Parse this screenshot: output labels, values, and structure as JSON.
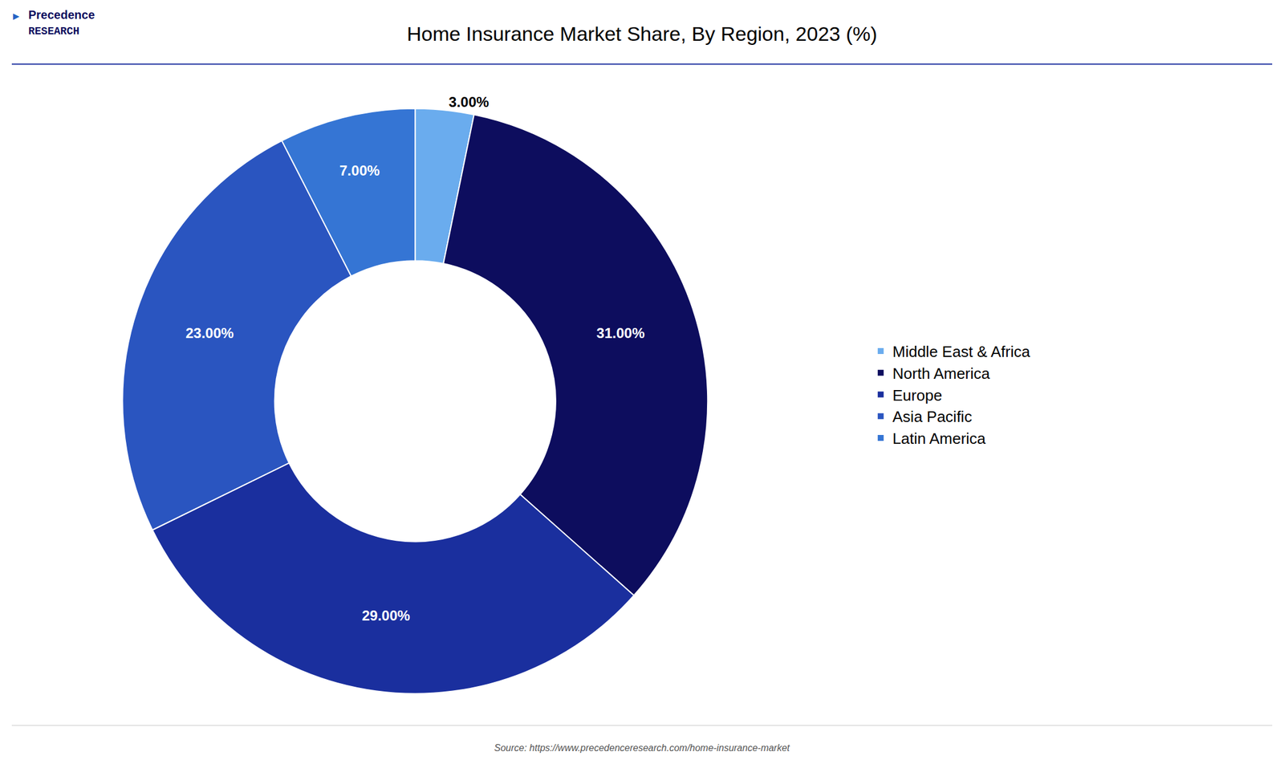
{
  "chart_data": {
    "type": "donut",
    "title": "Home Insurance Market Share, By Region, 2023 (%)",
    "categories": [
      "Middle East & Africa",
      "North America",
      "Europe",
      "Asia Pacific",
      "Latin America"
    ],
    "values": [
      3.0,
      31.0,
      29.0,
      23.0,
      7.0
    ],
    "value_labels": [
      "3.00%",
      "31.00%",
      "29.00%",
      "23.00%",
      "7.00%"
    ],
    "colors": [
      "#6aacee",
      "#0d0d5e",
      "#1a2f9e",
      "#2a55c0",
      "#3575d4"
    ],
    "data_labels": true,
    "legend": "right",
    "annotations": [
      "▶",
      "Precedence",
      "RESEARCH",
      "Source: https://www.precedenceresearch.com/home-insurance-market"
    ]
  }
}
